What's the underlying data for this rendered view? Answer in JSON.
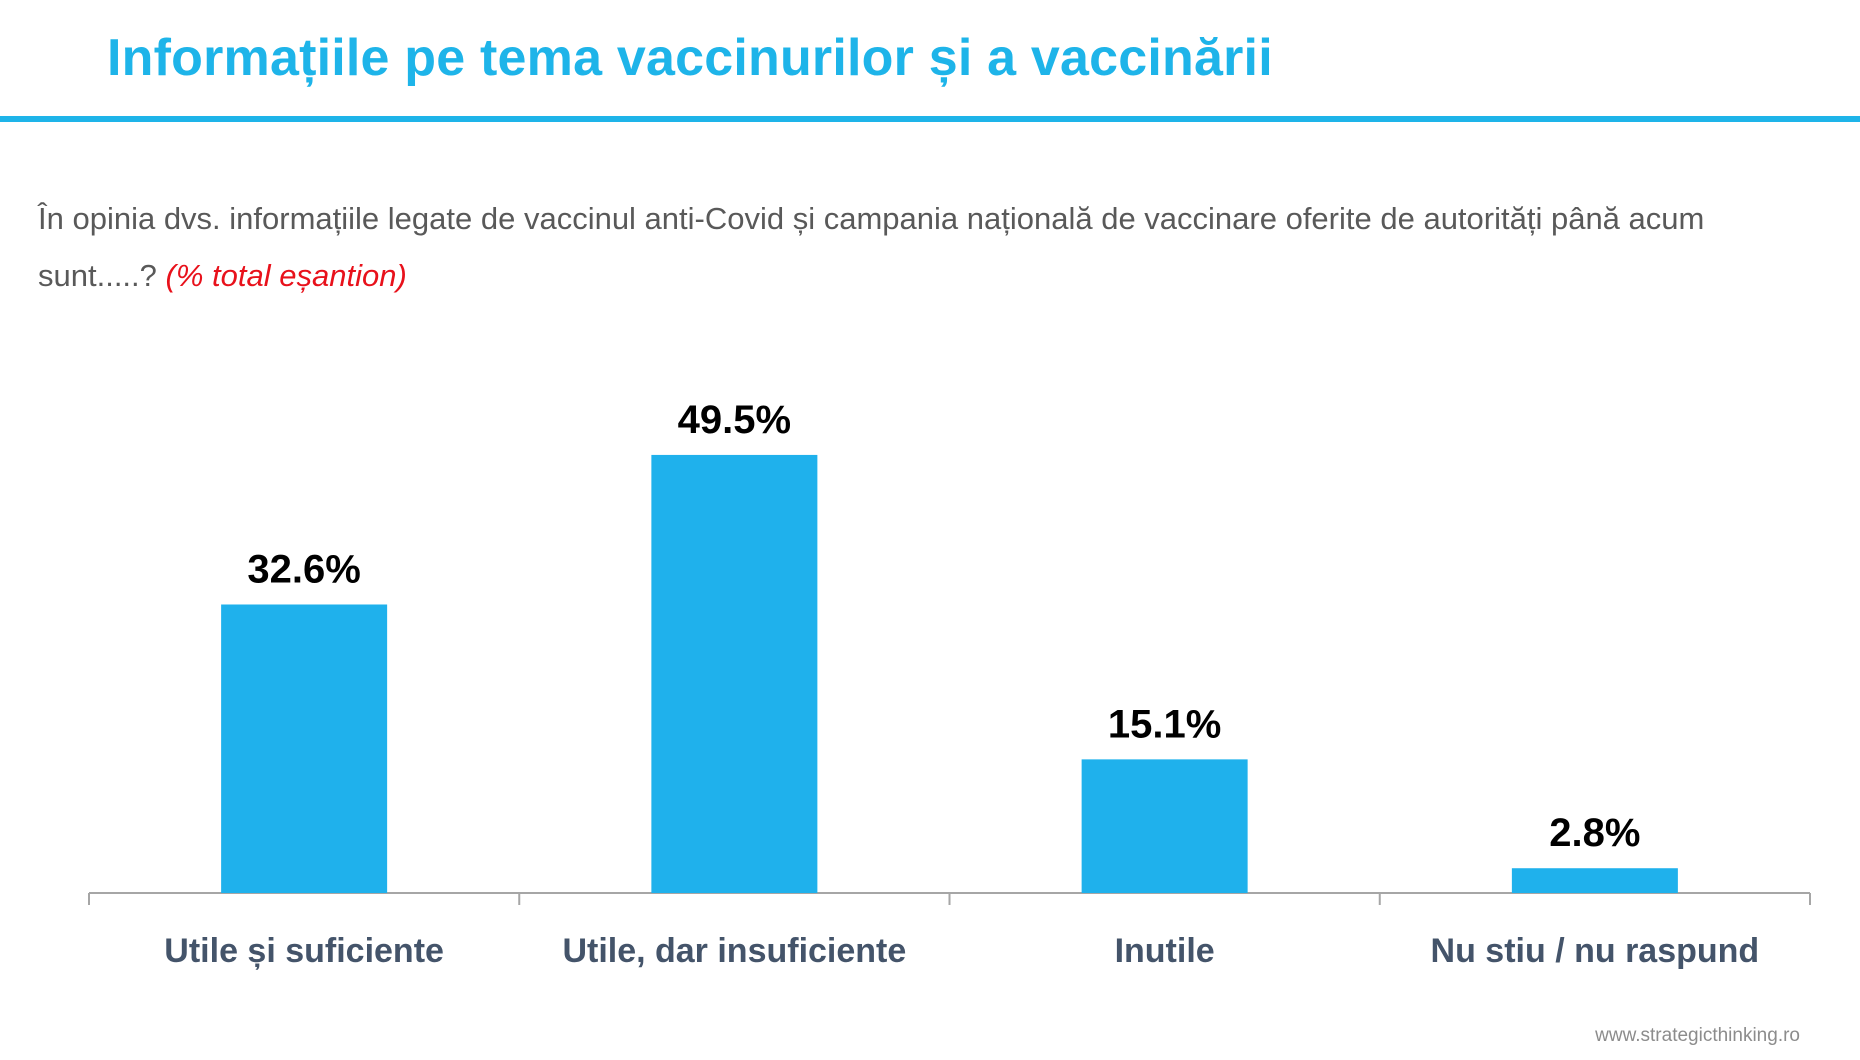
{
  "header": {
    "title": "Informațiile pe tema vaccinurilor și a vaccinării"
  },
  "question": {
    "text": "În opinia dvs. informațiile legate de vaccinul anti-Covid și campania națională de vaccinare oferite de autorități până acum sunt.....?",
    "note": "(% total eșantion)"
  },
  "footer": {
    "website": "www.strategicthinking.ro"
  },
  "colors": {
    "accent": "#1eb4e9",
    "bar": "#1fb1ec",
    "note": "#e8111b",
    "axis": "#a6a6a6"
  },
  "chart_data": {
    "type": "bar",
    "categories": [
      "Utile și suficiente",
      "Utile, dar insuficiente",
      "Inutile",
      "Nu stiu / nu raspund"
    ],
    "values": [
      32.6,
      49.5,
      15.1,
      2.8
    ],
    "labels": [
      "32.6%",
      "49.5%",
      "15.1%",
      "2.8%"
    ],
    "title": "",
    "xlabel": "",
    "ylabel": "",
    "ylim": [
      0,
      60
    ],
    "grid": false,
    "legend": "none"
  }
}
